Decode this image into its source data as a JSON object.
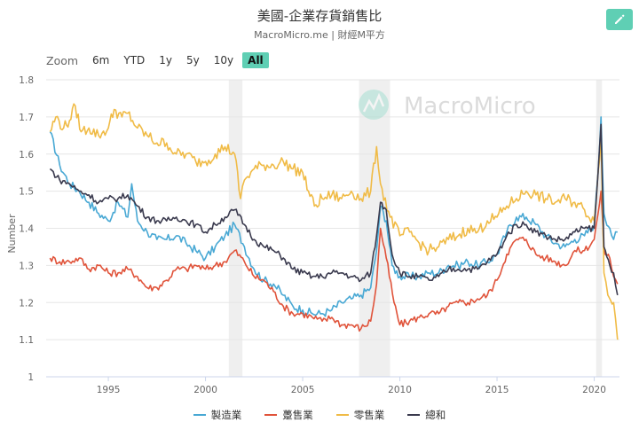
{
  "header": {
    "title": "美國-企業存貨銷售比",
    "subtitle": "MacroMicro.me | 財經M平方",
    "edit_icon": "pencil-icon"
  },
  "zoom": {
    "label": "Zoom",
    "buttons": [
      "6m",
      "YTD",
      "1y",
      "5y",
      "10y",
      "All"
    ],
    "active": "All"
  },
  "watermark": "MacroMicro",
  "chart_data": {
    "type": "line",
    "ylabel": "Number",
    "xlabel": "",
    "xlim": [
      1991.8,
      2021.3
    ],
    "ylim": [
      1,
      1.8
    ],
    "yticks": [
      "1",
      "1.1",
      "1.2",
      "1.3",
      "1.4",
      "1.5",
      "1.6",
      "1.7",
      "1.8"
    ],
    "xticks": [
      "1995",
      "2000",
      "2005",
      "2010",
      "2015",
      "2020"
    ],
    "grid": "horizontal",
    "legend_position": "bottom",
    "recession_bands": [
      [
        2001.2,
        2001.9
      ],
      [
        2007.9,
        2009.5
      ],
      [
        2020.1,
        2020.4
      ]
    ],
    "series": [
      {
        "name": "製造業",
        "color": "#48a8d4",
        "points": [
          [
            1992.0,
            1.66
          ],
          [
            1992.5,
            1.57
          ],
          [
            1993.0,
            1.52
          ],
          [
            1993.5,
            1.5
          ],
          [
            1994.0,
            1.47
          ],
          [
            1994.5,
            1.44
          ],
          [
            1995.0,
            1.42
          ],
          [
            1995.5,
            1.47
          ],
          [
            1996.0,
            1.43
          ],
          [
            1996.2,
            1.52
          ],
          [
            1996.5,
            1.42
          ],
          [
            1997.0,
            1.39
          ],
          [
            1997.5,
            1.37
          ],
          [
            1998.0,
            1.37
          ],
          [
            1998.5,
            1.38
          ],
          [
            1999.0,
            1.36
          ],
          [
            1999.5,
            1.34
          ],
          [
            2000.0,
            1.32
          ],
          [
            2000.5,
            1.35
          ],
          [
            2001.0,
            1.38
          ],
          [
            2001.5,
            1.41
          ],
          [
            2002.0,
            1.35
          ],
          [
            2002.5,
            1.29
          ],
          [
            2003.0,
            1.26
          ],
          [
            2003.5,
            1.25
          ],
          [
            2004.0,
            1.22
          ],
          [
            2004.5,
            1.19
          ],
          [
            2005.0,
            1.18
          ],
          [
            2005.5,
            1.17
          ],
          [
            2006.0,
            1.17
          ],
          [
            2006.5,
            1.18
          ],
          [
            2007.0,
            1.2
          ],
          [
            2007.5,
            1.21
          ],
          [
            2008.0,
            1.22
          ],
          [
            2008.5,
            1.24
          ],
          [
            2008.8,
            1.34
          ],
          [
            2009.0,
            1.46
          ],
          [
            2009.3,
            1.42
          ],
          [
            2009.6,
            1.3
          ],
          [
            2010.0,
            1.27
          ],
          [
            2010.5,
            1.27
          ],
          [
            2011.0,
            1.27
          ],
          [
            2011.5,
            1.28
          ],
          [
            2012.0,
            1.28
          ],
          [
            2012.5,
            1.3
          ],
          [
            2013.0,
            1.3
          ],
          [
            2013.5,
            1.31
          ],
          [
            2014.0,
            1.3
          ],
          [
            2014.5,
            1.31
          ],
          [
            2015.0,
            1.33
          ],
          [
            2015.5,
            1.39
          ],
          [
            2016.0,
            1.43
          ],
          [
            2016.5,
            1.43
          ],
          [
            2017.0,
            1.41
          ],
          [
            2017.5,
            1.38
          ],
          [
            2018.0,
            1.36
          ],
          [
            2018.5,
            1.35
          ],
          [
            2019.0,
            1.37
          ],
          [
            2019.5,
            1.38
          ],
          [
            2020.0,
            1.41
          ],
          [
            2020.2,
            1.55
          ],
          [
            2020.35,
            1.7
          ],
          [
            2020.5,
            1.44
          ],
          [
            2020.8,
            1.4
          ],
          [
            2021.0,
            1.37
          ],
          [
            2021.2,
            1.39
          ]
        ]
      },
      {
        "name": "躉售業",
        "color": "#e0533a",
        "points": [
          [
            1992.0,
            1.32
          ],
          [
            1992.5,
            1.31
          ],
          [
            1993.0,
            1.31
          ],
          [
            1993.5,
            1.32
          ],
          [
            1994.0,
            1.29
          ],
          [
            1994.5,
            1.3
          ],
          [
            1995.0,
            1.28
          ],
          [
            1995.5,
            1.28
          ],
          [
            1996.0,
            1.29
          ],
          [
            1996.5,
            1.27
          ],
          [
            1997.0,
            1.24
          ],
          [
            1997.5,
            1.24
          ],
          [
            1998.0,
            1.26
          ],
          [
            1998.5,
            1.29
          ],
          [
            1999.0,
            1.29
          ],
          [
            1999.5,
            1.3
          ],
          [
            2000.0,
            1.29
          ],
          [
            2000.5,
            1.3
          ],
          [
            2001.0,
            1.31
          ],
          [
            2001.5,
            1.34
          ],
          [
            2002.0,
            1.31
          ],
          [
            2002.5,
            1.27
          ],
          [
            2003.0,
            1.26
          ],
          [
            2003.5,
            1.23
          ],
          [
            2004.0,
            1.19
          ],
          [
            2004.5,
            1.17
          ],
          [
            2005.0,
            1.17
          ],
          [
            2005.5,
            1.16
          ],
          [
            2006.0,
            1.15
          ],
          [
            2006.5,
            1.16
          ],
          [
            2007.0,
            1.14
          ],
          [
            2007.5,
            1.14
          ],
          [
            2008.0,
            1.13
          ],
          [
            2008.5,
            1.15
          ],
          [
            2008.8,
            1.25
          ],
          [
            2009.0,
            1.4
          ],
          [
            2009.3,
            1.32
          ],
          [
            2009.7,
            1.2
          ],
          [
            2010.0,
            1.14
          ],
          [
            2010.5,
            1.15
          ],
          [
            2011.0,
            1.16
          ],
          [
            2011.5,
            1.17
          ],
          [
            2012.0,
            1.17
          ],
          [
            2012.5,
            1.19
          ],
          [
            2013.0,
            1.2
          ],
          [
            2013.5,
            1.2
          ],
          [
            2014.0,
            1.21
          ],
          [
            2014.5,
            1.22
          ],
          [
            2015.0,
            1.26
          ],
          [
            2015.5,
            1.33
          ],
          [
            2016.0,
            1.37
          ],
          [
            2016.5,
            1.37
          ],
          [
            2017.0,
            1.33
          ],
          [
            2017.5,
            1.32
          ],
          [
            2018.0,
            1.31
          ],
          [
            2018.5,
            1.3
          ],
          [
            2019.0,
            1.34
          ],
          [
            2019.5,
            1.34
          ],
          [
            2020.0,
            1.37
          ],
          [
            2020.2,
            1.44
          ],
          [
            2020.35,
            1.5
          ],
          [
            2020.5,
            1.34
          ],
          [
            2020.8,
            1.32
          ],
          [
            2021.0,
            1.27
          ],
          [
            2021.2,
            1.25
          ]
        ]
      },
      {
        "name": "零售業",
        "color": "#f0bb46",
        "points": [
          [
            1992.0,
            1.66
          ],
          [
            1992.3,
            1.7
          ],
          [
            1992.7,
            1.67
          ],
          [
            1993.0,
            1.69
          ],
          [
            1993.3,
            1.73
          ],
          [
            1993.6,
            1.66
          ],
          [
            1994.0,
            1.67
          ],
          [
            1994.5,
            1.65
          ],
          [
            1995.0,
            1.67
          ],
          [
            1995.3,
            1.72
          ],
          [
            1995.7,
            1.7
          ],
          [
            1996.0,
            1.71
          ],
          [
            1996.5,
            1.67
          ],
          [
            1997.0,
            1.65
          ],
          [
            1997.5,
            1.63
          ],
          [
            1998.0,
            1.63
          ],
          [
            1998.5,
            1.6
          ],
          [
            1999.0,
            1.6
          ],
          [
            1999.5,
            1.58
          ],
          [
            2000.0,
            1.58
          ],
          [
            2000.5,
            1.6
          ],
          [
            2001.0,
            1.62
          ],
          [
            2001.5,
            1.6
          ],
          [
            2001.8,
            1.48
          ],
          [
            2002.0,
            1.53
          ],
          [
            2002.5,
            1.56
          ],
          [
            2003.0,
            1.57
          ],
          [
            2003.5,
            1.57
          ],
          [
            2004.0,
            1.58
          ],
          [
            2004.5,
            1.56
          ],
          [
            2005.0,
            1.55
          ],
          [
            2005.3,
            1.5
          ],
          [
            2005.6,
            1.46
          ],
          [
            2006.0,
            1.48
          ],
          [
            2006.5,
            1.49
          ],
          [
            2007.0,
            1.48
          ],
          [
            2007.5,
            1.5
          ],
          [
            2008.0,
            1.48
          ],
          [
            2008.5,
            1.5
          ],
          [
            2008.8,
            1.62
          ],
          [
            2009.0,
            1.52
          ],
          [
            2009.5,
            1.43
          ],
          [
            2010.0,
            1.38
          ],
          [
            2010.5,
            1.39
          ],
          [
            2011.0,
            1.36
          ],
          [
            2011.5,
            1.34
          ],
          [
            2012.0,
            1.35
          ],
          [
            2012.5,
            1.37
          ],
          [
            2013.0,
            1.38
          ],
          [
            2013.5,
            1.4
          ],
          [
            2014.0,
            1.39
          ],
          [
            2014.5,
            1.42
          ],
          [
            2015.0,
            1.43
          ],
          [
            2015.5,
            1.46
          ],
          [
            2016.0,
            1.48
          ],
          [
            2016.5,
            1.5
          ],
          [
            2017.0,
            1.49
          ],
          [
            2017.5,
            1.48
          ],
          [
            2018.0,
            1.47
          ],
          [
            2018.5,
            1.48
          ],
          [
            2019.0,
            1.47
          ],
          [
            2019.5,
            1.45
          ],
          [
            2020.0,
            1.42
          ],
          [
            2020.2,
            1.55
          ],
          [
            2020.35,
            1.65
          ],
          [
            2020.5,
            1.28
          ],
          [
            2020.7,
            1.22
          ],
          [
            2021.0,
            1.2
          ],
          [
            2021.2,
            1.1
          ]
        ]
      },
      {
        "name": "總和",
        "color": "#3a3a4e",
        "points": [
          [
            1992.0,
            1.56
          ],
          [
            1992.5,
            1.53
          ],
          [
            1993.0,
            1.52
          ],
          [
            1993.5,
            1.5
          ],
          [
            1994.0,
            1.49
          ],
          [
            1994.5,
            1.47
          ],
          [
            1995.0,
            1.48
          ],
          [
            1995.5,
            1.48
          ],
          [
            1996.0,
            1.49
          ],
          [
            1996.5,
            1.46
          ],
          [
            1997.0,
            1.43
          ],
          [
            1997.5,
            1.42
          ],
          [
            1998.0,
            1.42
          ],
          [
            1998.5,
            1.43
          ],
          [
            1999.0,
            1.42
          ],
          [
            1999.5,
            1.41
          ],
          [
            2000.0,
            1.39
          ],
          [
            2000.5,
            1.41
          ],
          [
            2001.0,
            1.43
          ],
          [
            2001.5,
            1.45
          ],
          [
            2002.0,
            1.41
          ],
          [
            2002.5,
            1.37
          ],
          [
            2003.0,
            1.35
          ],
          [
            2003.5,
            1.34
          ],
          [
            2004.0,
            1.32
          ],
          [
            2004.5,
            1.29
          ],
          [
            2005.0,
            1.28
          ],
          [
            2005.5,
            1.27
          ],
          [
            2006.0,
            1.27
          ],
          [
            2006.5,
            1.28
          ],
          [
            2007.0,
            1.28
          ],
          [
            2007.5,
            1.27
          ],
          [
            2008.0,
            1.26
          ],
          [
            2008.5,
            1.28
          ],
          [
            2008.8,
            1.38
          ],
          [
            2009.0,
            1.47
          ],
          [
            2009.3,
            1.45
          ],
          [
            2009.6,
            1.33
          ],
          [
            2010.0,
            1.28
          ],
          [
            2010.5,
            1.27
          ],
          [
            2011.0,
            1.27
          ],
          [
            2011.5,
            1.26
          ],
          [
            2012.0,
            1.27
          ],
          [
            2012.5,
            1.29
          ],
          [
            2013.0,
            1.29
          ],
          [
            2013.5,
            1.29
          ],
          [
            2014.0,
            1.29
          ],
          [
            2014.5,
            1.31
          ],
          [
            2015.0,
            1.33
          ],
          [
            2015.5,
            1.38
          ],
          [
            2016.0,
            1.41
          ],
          [
            2016.5,
            1.41
          ],
          [
            2017.0,
            1.39
          ],
          [
            2017.5,
            1.38
          ],
          [
            2018.0,
            1.37
          ],
          [
            2018.5,
            1.37
          ],
          [
            2019.0,
            1.39
          ],
          [
            2019.5,
            1.4
          ],
          [
            2020.0,
            1.4
          ],
          [
            2020.2,
            1.55
          ],
          [
            2020.35,
            1.68
          ],
          [
            2020.5,
            1.35
          ],
          [
            2020.8,
            1.3
          ],
          [
            2021.0,
            1.28
          ],
          [
            2021.2,
            1.22
          ]
        ]
      }
    ]
  }
}
